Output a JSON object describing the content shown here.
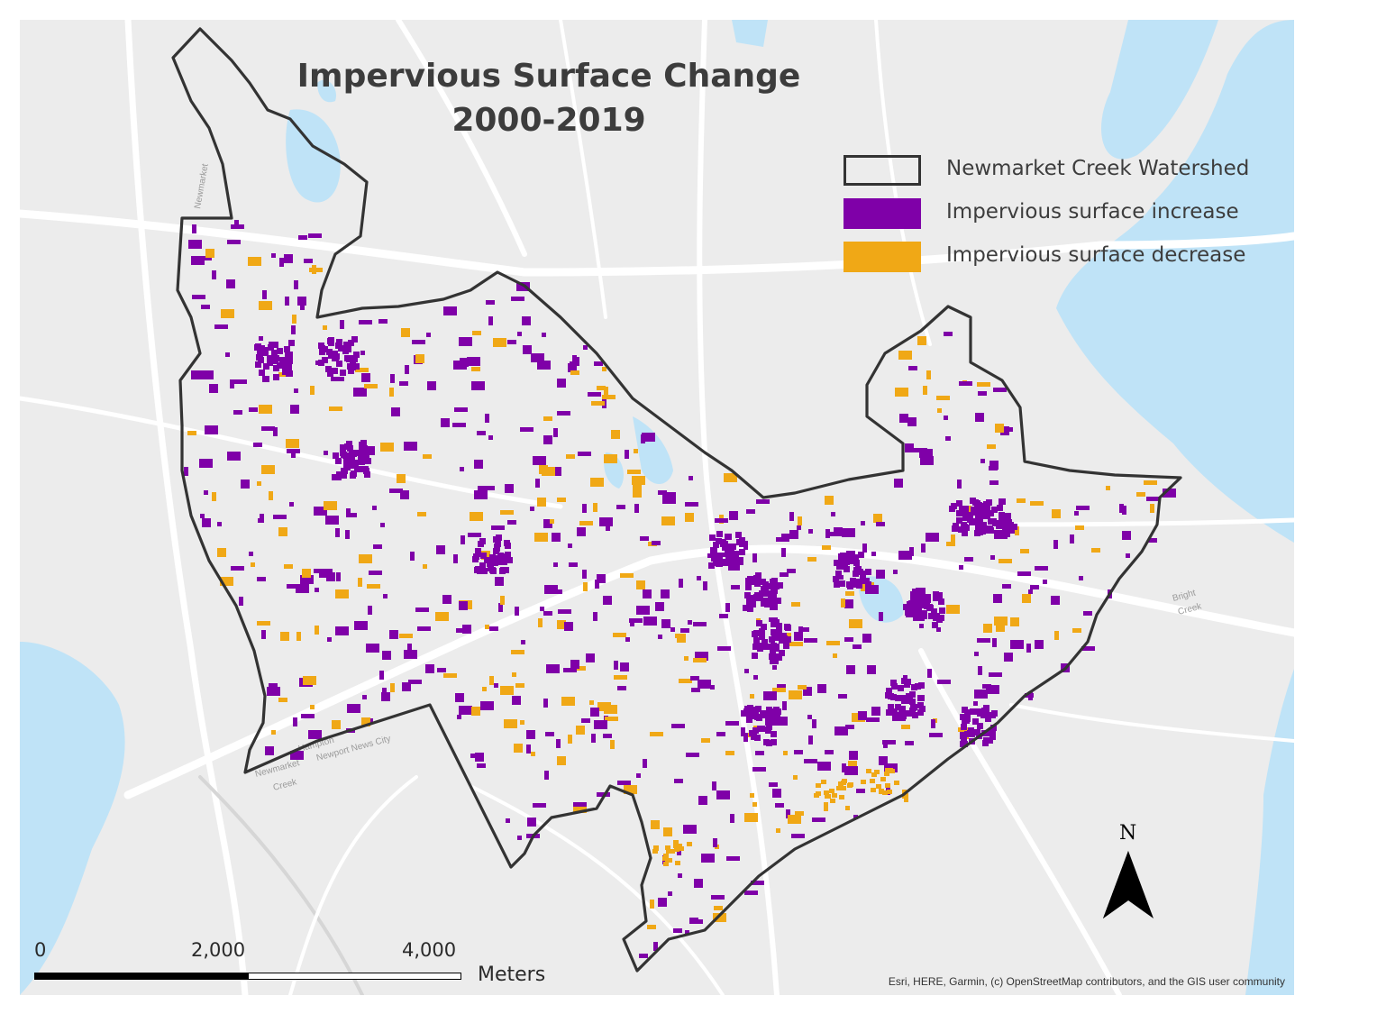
{
  "title": {
    "line1": "Impervious Surface Change",
    "line2": "2000-2019"
  },
  "legend": [
    {
      "label": "Newmarket Creek Watershed",
      "type": "outline",
      "color": "#333333"
    },
    {
      "label": "Impervious surface increase",
      "type": "fill",
      "color": "#7f00a8"
    },
    {
      "label": "Impervious surface decrease",
      "type": "fill",
      "color": "#f0a816"
    }
  ],
  "scale_bar": {
    "ticks": [
      "0",
      "2,000",
      "4,000"
    ],
    "unit": "Meters"
  },
  "north_arrow": {
    "label": "N"
  },
  "attribution": "Esri, HERE, Garmin, (c) OpenStreetMap contributors, and the GIS user community",
  "basemap_labels": [
    "Newmarket",
    "Hampton",
    "Newmarket",
    "Newport News City",
    "Creek",
    "Bright",
    "Creek"
  ],
  "colors": {
    "water": "#bfe3f7",
    "land": "#ececec",
    "road": "#ffffff",
    "boundary": "#333333"
  }
}
